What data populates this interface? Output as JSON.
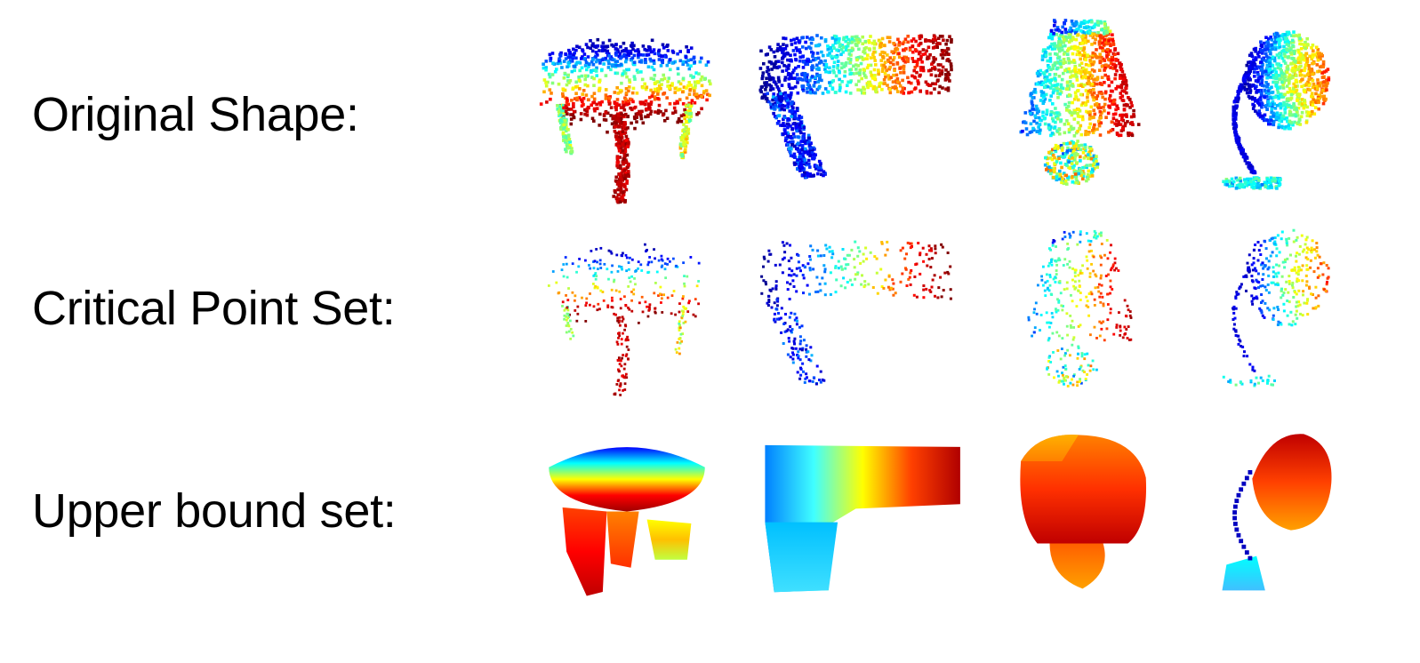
{
  "rows": [
    {
      "label": "Original Shape:",
      "render": "dense-points"
    },
    {
      "label": "Critical Point Set:",
      "render": "sparse-points"
    },
    {
      "label": "Upper bound set:",
      "render": "solid-volume"
    }
  ],
  "objects": [
    "table",
    "pistol",
    "lamp-jar",
    "desk-lamp"
  ],
  "colormap": "jet",
  "colormap_stops": [
    "#00008f",
    "#0000ff",
    "#00ffff",
    "#ffff00",
    "#ff0000",
    "#800000"
  ]
}
